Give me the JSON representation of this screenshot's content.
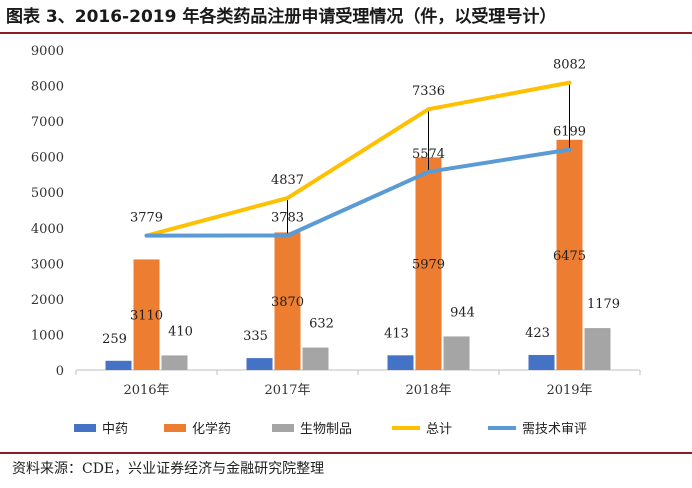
{
  "header": {
    "title": "图表 3、2016-2019 年各类药品注册申请受理情况（件，以受理号计）"
  },
  "footer": {
    "source": "资料来源：CDE，兴业证券经济与金融研究院整理"
  },
  "chart_data": {
    "type": "bar",
    "categories": [
      "2016年",
      "2017年",
      "2018年",
      "2019年"
    ],
    "ylim": [
      0,
      9000
    ],
    "yticks": [
      0,
      1000,
      2000,
      3000,
      4000,
      5000,
      6000,
      7000,
      8000,
      9000
    ],
    "grid": false,
    "legend_position": "bottom",
    "series": [
      {
        "name": "中药",
        "kind": "bar",
        "color": "#4472C4",
        "values": [
          259,
          335,
          413,
          423
        ]
      },
      {
        "name": "化学药",
        "kind": "bar",
        "color": "#ED7D31",
        "values": [
          3110,
          3870,
          5979,
          6475
        ]
      },
      {
        "name": "生物制品",
        "kind": "bar",
        "color": "#A5A5A5",
        "values": [
          410,
          632,
          944,
          1179
        ]
      },
      {
        "name": "总计",
        "kind": "line",
        "color": "#FFC000",
        "values": [
          3779,
          4837,
          7336,
          8082
        ]
      },
      {
        "name": "需技术审评",
        "kind": "line",
        "color": "#5B9BD5",
        "values": [
          3779,
          3783,
          5574,
          6199
        ]
      }
    ]
  }
}
